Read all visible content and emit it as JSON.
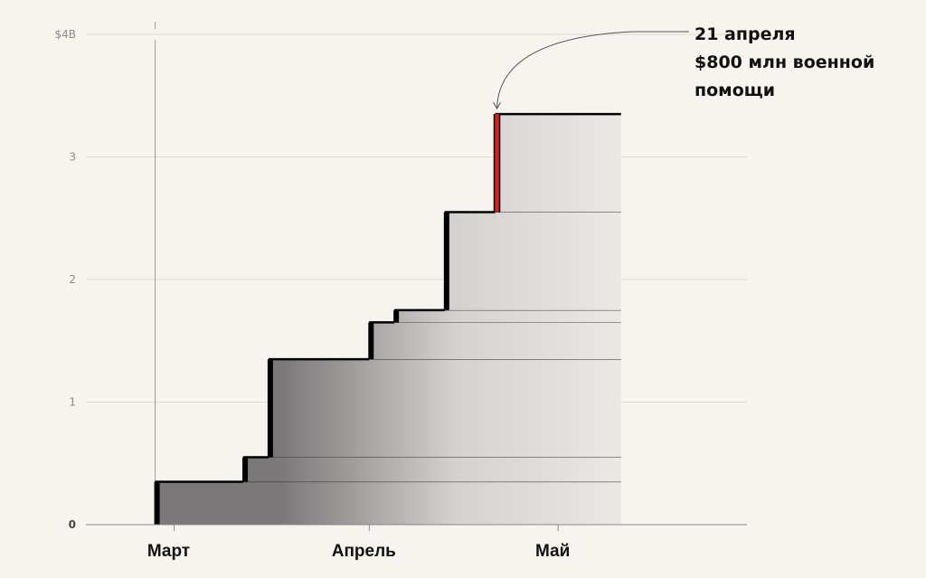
{
  "chart_data": {
    "type": "area",
    "title": "",
    "xlabel": "",
    "ylabel": "",
    "ylim": [
      0,
      4
    ],
    "y_ticks": [
      {
        "value": 0,
        "label": "0"
      },
      {
        "value": 1,
        "label": "1"
      },
      {
        "value": 2,
        "label": "2"
      },
      {
        "value": 3,
        "label": "3"
      },
      {
        "value": 4,
        "label": "$4B"
      }
    ],
    "x_ticks": [
      {
        "date": "2022-03-01",
        "label": "Март"
      },
      {
        "date": "2022-04-01",
        "label": "Апрель"
      },
      {
        "date": "2022-05-01",
        "label": "Май"
      }
    ],
    "x_range": [
      "2022-02-15",
      "2022-05-31"
    ],
    "vertical_rule_date": "2022-02-26",
    "series_end_date": "2022-05-11",
    "steps": [
      {
        "date": "2022-02-26",
        "from": 0,
        "to": 0.35
      },
      {
        "date": "2022-03-12",
        "from": 0.35,
        "to": 0.55
      },
      {
        "date": "2022-03-16",
        "from": 0.55,
        "to": 1.35
      },
      {
        "date": "2022-04-01",
        "from": 1.35,
        "to": 1.65
      },
      {
        "date": "2022-04-05",
        "from": 1.65,
        "to": 1.75
      },
      {
        "date": "2022-04-13",
        "from": 1.75,
        "to": 2.55
      },
      {
        "date": "2022-04-21",
        "from": 2.55,
        "to": 3.35,
        "highlight": true
      }
    ],
    "grid": true,
    "colors": {
      "highlight": "#d62020",
      "step": "#000000",
      "fill_start": "#7a7878",
      "fill_end": "#f1eeee"
    },
    "annotation": {
      "date": "2022-04-21",
      "value": 3.35,
      "lines": [
        "21 апреля",
        "$800 млн военной",
        "помощи"
      ]
    }
  }
}
